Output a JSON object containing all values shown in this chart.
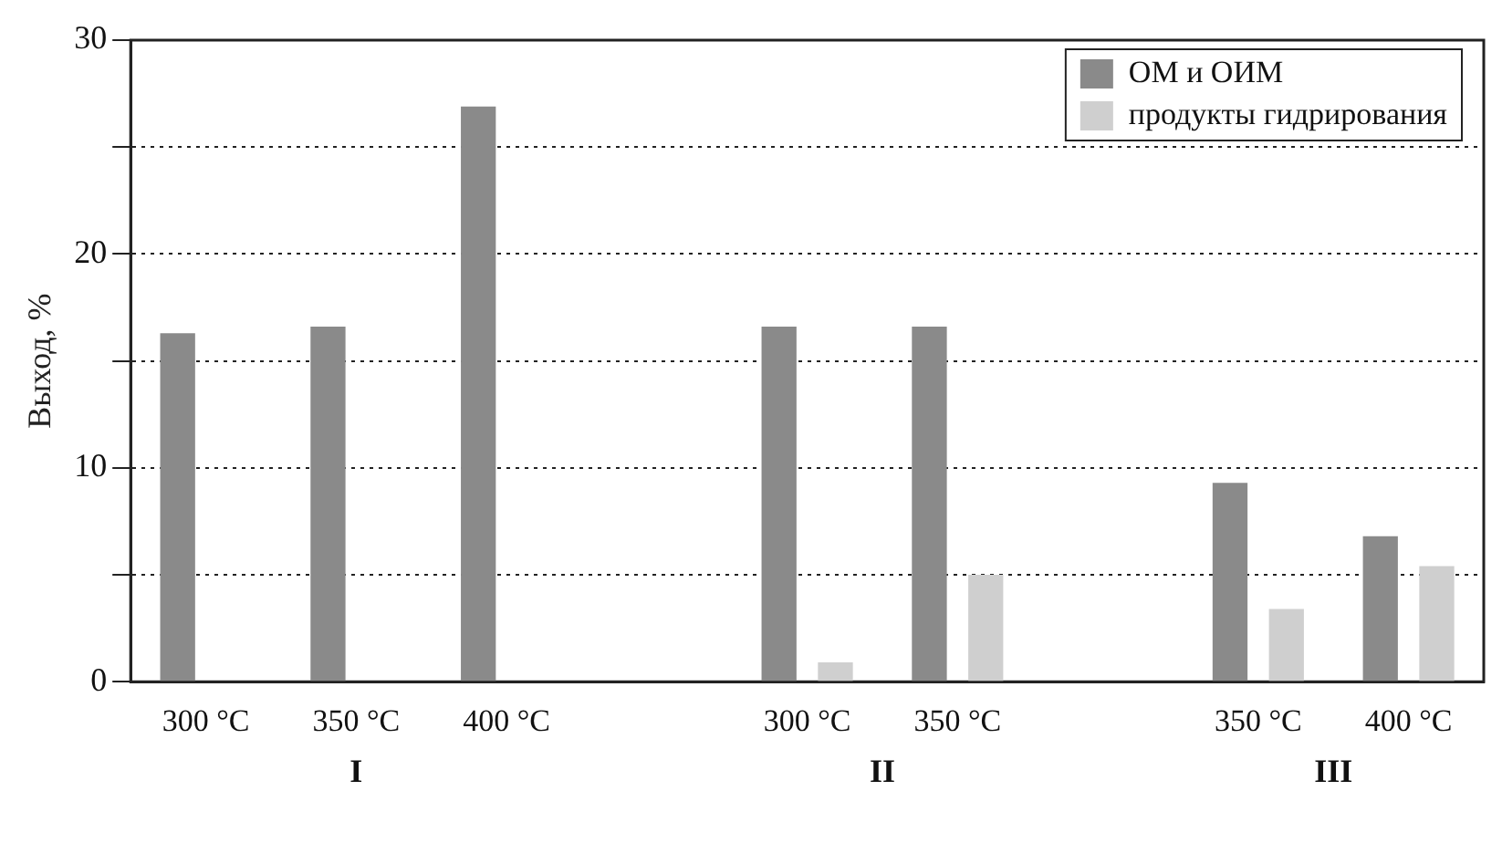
{
  "chart_data": {
    "type": "bar",
    "ylabel": "Выход, %",
    "categories": [
      "300 °C",
      "350 °C",
      "400 °C",
      null,
      "300 °C",
      "350 °C",
      null,
      "350 °C",
      "400 °C"
    ],
    "series": [
      {
        "name": "ОМ и ОИМ",
        "color": "#8a8a8a",
        "values": [
          16.3,
          16.6,
          26.9,
          null,
          16.6,
          16.6,
          null,
          9.3,
          6.8
        ]
      },
      {
        "name": "продукты гидрирования",
        "color": "#cfcfcf",
        "values": [
          null,
          null,
          null,
          null,
          0.9,
          5.0,
          null,
          3.4,
          5.4
        ]
      }
    ],
    "ylim": [
      0,
      30
    ],
    "yticks": [
      0,
      {
        "value": 5,
        "label": null
      },
      10,
      {
        "value": 15,
        "label": null
      },
      20,
      {
        "value": 25,
        "label": null
      },
      30
    ],
    "grid": "y",
    "line_style": "dotted",
    "legend": "top right",
    "annotations": [
      "I",
      "II",
      "III"
    ]
  }
}
